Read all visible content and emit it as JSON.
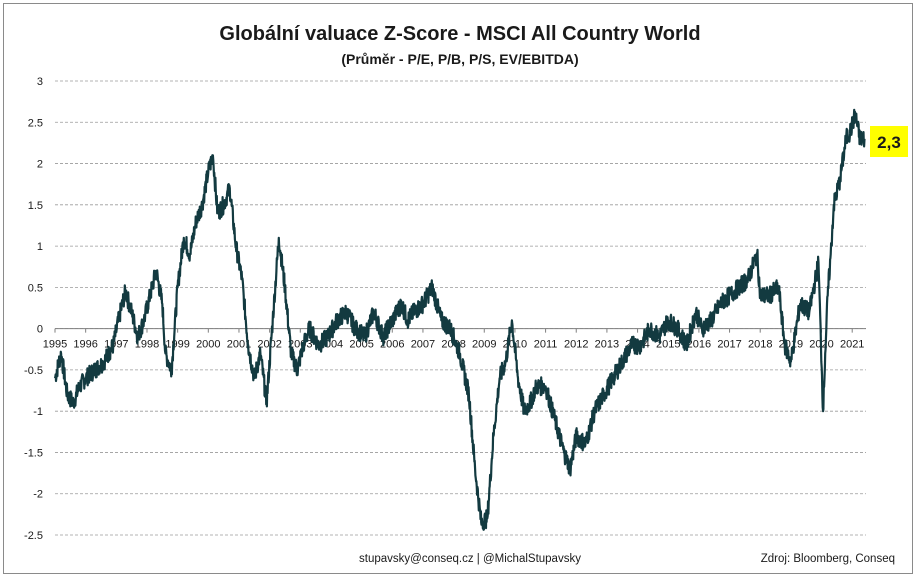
{
  "chart_data": {
    "type": "line",
    "title": "Globální valuace Z-Score - MSCI All Country World",
    "subtitle": "(Průměr - P/E, P/B, P/S, EV/EBITDA)",
    "xlabel": "",
    "ylabel": "",
    "xlim": [
      1995.0,
      2021.45
    ],
    "ylim": [
      -2.5,
      3
    ],
    "y_ticks": [
      "-2.5",
      "-2",
      "-1.5",
      "-1",
      "-0.5",
      "0",
      "0.5",
      "1",
      "1.5",
      "2",
      "2.5",
      "3"
    ],
    "x_ticks": [
      "1995",
      "1996",
      "1997",
      "1998",
      "1999",
      "2000",
      "2001",
      "2002",
      "2003",
      "2004",
      "2005",
      "2006",
      "2007",
      "2008",
      "2009",
      "2010",
      "2011",
      "2012",
      "2013",
      "2014",
      "2015",
      "2016",
      "2017",
      "2018",
      "2019",
      "2020",
      "2021"
    ],
    "grid": true,
    "line_color": "#133a40",
    "series": [
      {
        "x": [
          1995.0,
          1995.2,
          1995.4,
          1995.6,
          1995.8,
          1996.0,
          1996.3,
          1996.6,
          1996.9,
          1997.1,
          1997.3,
          1997.5,
          1997.7,
          1997.9,
          1998.1,
          1998.3,
          1998.5,
          1998.6,
          1998.8,
          1999.0,
          1999.2,
          1999.4,
          1999.6,
          1999.8,
          2000.0,
          2000.15,
          2000.3,
          2000.5,
          2000.7,
          2000.9,
          2001.1,
          2001.3,
          2001.5,
          2001.7,
          2001.9,
          2002.1,
          2002.3,
          2002.5,
          2002.7,
          2002.9,
          2003.1,
          2003.3,
          2003.6,
          2003.9,
          2004.2,
          2004.5,
          2004.8,
          2005.1,
          2005.4,
          2005.7,
          2006.0,
          2006.3,
          2006.5,
          2006.7,
          2007.0,
          2007.3,
          2007.6,
          2007.9,
          2008.2,
          2008.5,
          2008.7,
          2008.9,
          2009.1,
          2009.3,
          2009.5,
          2009.7,
          2009.9,
          2010.1,
          2010.3,
          2010.5,
          2010.7,
          2011.0,
          2011.3,
          2011.6,
          2011.8,
          2012.0,
          2012.3,
          2012.6,
          2012.9,
          2013.2,
          2013.5,
          2013.8,
          2014.1,
          2014.4,
          2014.7,
          2015.0,
          2015.3,
          2015.6,
          2015.9,
          2016.1,
          2016.4,
          2016.7,
          2017.0,
          2017.3,
          2017.6,
          2017.9,
          2018.0,
          2018.3,
          2018.6,
          2018.8,
          2019.0,
          2019.3,
          2019.6,
          2019.9,
          2020.05,
          2020.12,
          2020.2,
          2020.3,
          2020.4,
          2020.6,
          2020.8,
          2020.95,
          2021.1,
          2021.25,
          2021.4
        ],
        "values": [
          -0.6,
          -0.3,
          -0.8,
          -0.9,
          -0.7,
          -0.6,
          -0.5,
          -0.4,
          -0.2,
          0.15,
          0.45,
          0.2,
          -0.1,
          0.1,
          0.4,
          0.7,
          0.3,
          -0.3,
          -0.5,
          0.5,
          1.1,
          0.9,
          1.3,
          1.5,
          1.9,
          2.1,
          1.4,
          1.5,
          1.7,
          1.0,
          0.6,
          -0.2,
          -0.6,
          -0.3,
          -0.9,
          0.1,
          1.1,
          0.5,
          -0.3,
          -0.5,
          -0.2,
          0.0,
          -0.2,
          -0.1,
          0.1,
          0.2,
          0.0,
          -0.1,
          0.2,
          -0.1,
          0.1,
          0.3,
          0.1,
          0.2,
          0.3,
          0.5,
          0.1,
          0.0,
          -0.3,
          -0.8,
          -1.7,
          -2.35,
          -2.3,
          -1.3,
          -0.6,
          -0.4,
          0.1,
          -0.6,
          -1.0,
          -0.9,
          -0.7,
          -0.7,
          -1.1,
          -1.5,
          -1.7,
          -1.3,
          -1.4,
          -1.0,
          -0.8,
          -0.6,
          -0.4,
          -0.2,
          -0.2,
          0.0,
          -0.1,
          0.1,
          0.0,
          -0.2,
          0.2,
          0.0,
          0.1,
          0.3,
          0.4,
          0.5,
          0.6,
          0.9,
          0.4,
          0.4,
          0.5,
          -0.2,
          -0.4,
          0.3,
          0.2,
          0.8,
          -1.0,
          -0.3,
          0.4,
          0.9,
          1.5,
          1.8,
          2.3,
          2.4,
          2.6,
          2.3,
          2.3
        ]
      }
    ],
    "callout": {
      "text": "2,3",
      "value": 2.3,
      "background": "#ffff00"
    }
  },
  "footer": {
    "contact": "stupavsky@conseq.cz  |  @MichalStupavsky",
    "source": "Zdroj: Bloomberg, Conseq"
  }
}
